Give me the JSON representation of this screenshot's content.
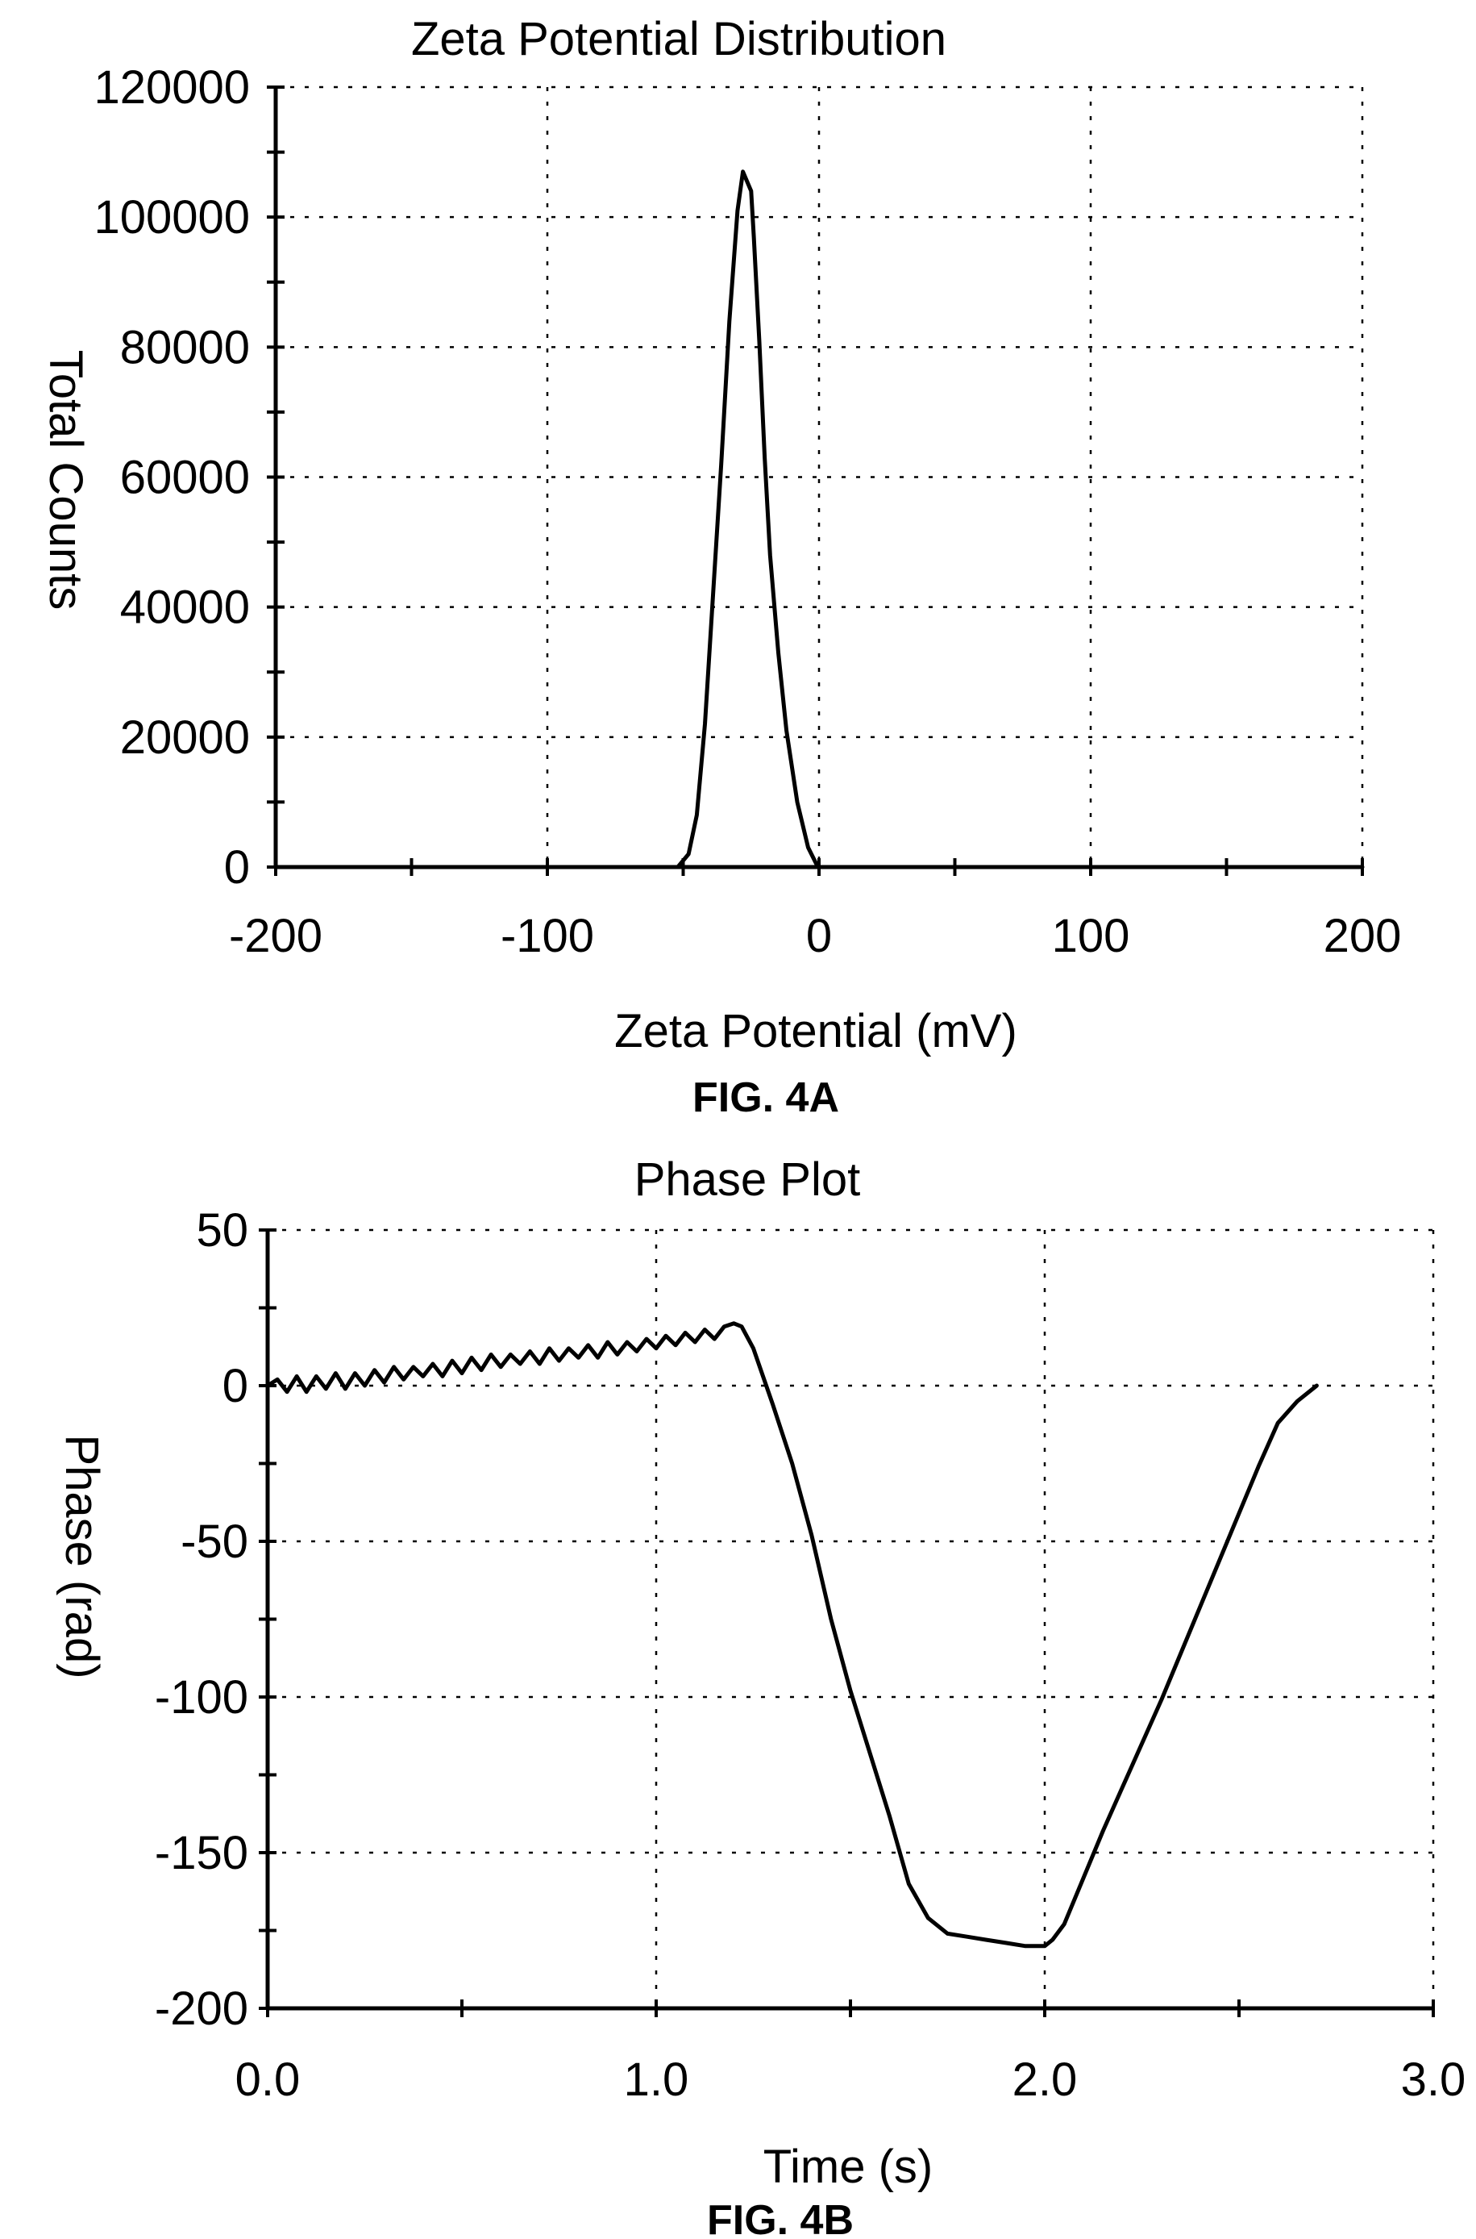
{
  "chart_data": [
    {
      "type": "line",
      "title": "Zeta Potential Distribution",
      "xlabel": "Zeta Potential (mV)",
      "ylabel": "Total Counts",
      "caption": "FIG. 4A",
      "xlim": [
        -200,
        200
      ],
      "ylim": [
        0,
        120000
      ],
      "xticks": [
        -200,
        -100,
        0,
        100,
        200
      ],
      "xtick_labels": [
        "-200",
        "-100",
        "0",
        "100",
        "200"
      ],
      "yticks": [
        0,
        20000,
        40000,
        60000,
        80000,
        100000,
        120000
      ],
      "ytick_labels": [
        "0",
        "20000",
        "40000",
        "60000",
        "80000",
        "100000",
        "120000"
      ],
      "x_minor_step": 50,
      "y_minor_step": 10000,
      "grid": true,
      "series": [
        {
          "x": [
            -200,
            -52,
            -48,
            -45,
            -42,
            -39,
            -36,
            -33,
            -30,
            -28,
            -27,
            -25,
            -24,
            -22,
            -20,
            -18,
            -15,
            -12,
            -8,
            -4,
            -1,
            0,
            1,
            200
          ],
          "y": [
            0,
            0,
            2000,
            8000,
            22000,
            42000,
            62000,
            84000,
            101000,
            107000,
            106000,
            104000,
            97000,
            81000,
            63000,
            48000,
            33000,
            21000,
            10000,
            3000,
            500,
            0,
            0,
            0
          ]
        }
      ]
    },
    {
      "type": "line",
      "title": "Phase Plot",
      "xlabel": "Time (s)",
      "ylabel": "Phase (rad)",
      "caption": "FIG. 4B",
      "xlim": [
        0,
        3.0
      ],
      "ylim": [
        -200,
        50
      ],
      "xticks": [
        0,
        1.0,
        2.0,
        3.0
      ],
      "xtick_labels": [
        "0.0",
        "1.0",
        "2.0",
        "3.0"
      ],
      "yticks": [
        -200,
        -150,
        -100,
        -50,
        0,
        50
      ],
      "ytick_labels": [
        "-200",
        "-150",
        "-100",
        "-50",
        "0",
        "50"
      ],
      "x_minor_step": 0.5,
      "y_minor_step": 25,
      "grid": true,
      "series": [
        {
          "x": [
            0.0,
            0.025,
            0.05,
            0.075,
            0.1,
            0.125,
            0.15,
            0.175,
            0.2,
            0.225,
            0.25,
            0.275,
            0.3,
            0.325,
            0.35,
            0.375,
            0.4,
            0.425,
            0.45,
            0.475,
            0.5,
            0.525,
            0.55,
            0.575,
            0.6,
            0.625,
            0.65,
            0.675,
            0.7,
            0.725,
            0.75,
            0.775,
            0.8,
            0.825,
            0.85,
            0.875,
            0.9,
            0.925,
            0.95,
            0.975,
            1.0,
            1.025,
            1.05,
            1.075,
            1.1,
            1.125,
            1.15,
            1.175,
            1.2,
            1.22,
            1.25,
            1.3,
            1.35,
            1.4,
            1.45,
            1.5,
            1.55,
            1.6,
            1.65,
            1.7,
            1.75,
            1.8,
            1.85,
            1.9,
            1.95,
            2.0,
            2.02,
            2.05,
            2.1,
            2.15,
            2.2,
            2.25,
            2.3,
            2.35,
            2.4,
            2.45,
            2.5,
            2.55,
            2.6,
            2.65,
            2.7
          ],
          "y": [
            0,
            2,
            -2,
            3,
            -2,
            3,
            -1,
            4,
            -1,
            4,
            0,
            5,
            1,
            6,
            2,
            6,
            3,
            7,
            3,
            8,
            4,
            9,
            5,
            10,
            6,
            10,
            7,
            11,
            7,
            12,
            8,
            12,
            9,
            13,
            9,
            14,
            10,
            14,
            11,
            15,
            12,
            16,
            13,
            17,
            14,
            18,
            15,
            19,
            20,
            19,
            12,
            -6,
            -25,
            -48,
            -75,
            -98,
            -118,
            -138,
            -160,
            -171,
            -176,
            -177,
            -178,
            -179,
            -180,
            -180,
            -178,
            -173,
            -158,
            -143,
            -129,
            -115,
            -101,
            -86,
            -71,
            -56,
            -41,
            -26,
            -12,
            -5,
            0
          ]
        }
      ]
    }
  ]
}
